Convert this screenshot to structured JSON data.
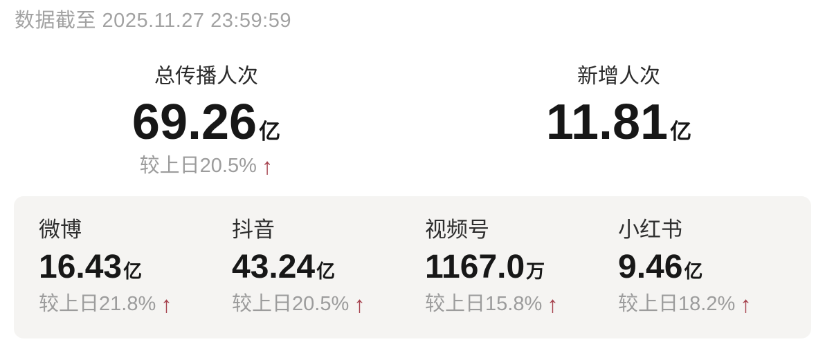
{
  "page": {
    "timestamp": "数据截至 2025.11.27 23:59:59"
  },
  "colors": {
    "arrow_red": "#a6424e",
    "panel_bg": "#f5f4f2",
    "text_dark": "#171717",
    "text_gray": "#9c9c9c"
  },
  "summary": {
    "total": {
      "label": "总传播人次",
      "value": "69.26",
      "unit": "亿",
      "delta_text": "较上日20.5%",
      "arrow": "↑"
    },
    "new": {
      "label": "新增人次",
      "value": "11.81",
      "unit": "亿"
    }
  },
  "platforms": [
    {
      "label": "微博",
      "value": "16.43",
      "unit": "亿",
      "delta_text": "较上日21.8%",
      "arrow": "↑"
    },
    {
      "label": "抖音",
      "value": "43.24",
      "unit": "亿",
      "delta_text": "较上日20.5%",
      "arrow": "↑"
    },
    {
      "label": "视频号",
      "value": "1167.0",
      "unit": "万",
      "delta_text": "较上日15.8%",
      "arrow": "↑"
    },
    {
      "label": "小红书",
      "value": "9.46",
      "unit": "亿",
      "delta_text": "较上日18.2%",
      "arrow": "↑"
    }
  ]
}
